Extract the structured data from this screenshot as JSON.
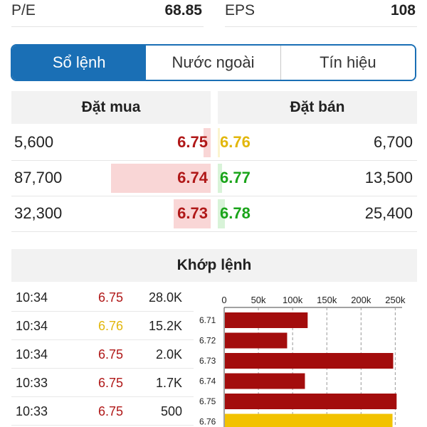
{
  "stats": {
    "pe_label": "P/E",
    "pe_value": "68.85",
    "eps_label": "EPS",
    "eps_value": "108"
  },
  "tabs": [
    {
      "label": "Sổ lệnh",
      "active": true
    },
    {
      "label": "Nước ngoài",
      "active": false
    },
    {
      "label": "Tín hiệu",
      "active": false
    }
  ],
  "orderbook": {
    "buy_header": "Đặt mua",
    "sell_header": "Đặt bán",
    "rows": [
      {
        "bid_volume": "5,600",
        "bid_price": "6.75",
        "bid_color": "#b01818",
        "bid_bar_fraction": 0.07,
        "ask_price": "6.76",
        "ask_color": "#e2b70c",
        "ask_bar_fraction": 0.05,
        "ask_bar_color": "#fbf4cf",
        "ask_volume": "6,700"
      },
      {
        "bid_volume": "87,700",
        "bid_price": "6.74",
        "bid_color": "#b01818",
        "bid_bar_fraction": 1.0,
        "ask_price": "6.77",
        "ask_color": "#1aa41a",
        "ask_bar_fraction": 0.1,
        "ask_bar_color": "#d8f3d8",
        "ask_volume": "13,500"
      },
      {
        "bid_volume": "32,300",
        "bid_price": "6.73",
        "bid_color": "#b01818",
        "bid_bar_fraction": 0.37,
        "ask_price": "6.78",
        "ask_color": "#1aa41a",
        "ask_bar_fraction": 0.19,
        "ask_bar_color": "#d8f3d8",
        "ask_volume": "25,400"
      }
    ]
  },
  "matched": {
    "title": "Khớp lệnh",
    "rows": [
      {
        "time": "10:34",
        "price": "6.75",
        "price_color": "#b01818",
        "volume": "28.0K"
      },
      {
        "time": "10:34",
        "price": "6.76",
        "price_color": "#e2b70c",
        "volume": "15.2K"
      },
      {
        "time": "10:34",
        "price": "6.75",
        "price_color": "#b01818",
        "volume": "2.0K"
      },
      {
        "time": "10:33",
        "price": "6.75",
        "price_color": "#b01818",
        "volume": "1.7K"
      },
      {
        "time": "10:33",
        "price": "6.75",
        "price_color": "#b01818",
        "volume": "500"
      }
    ]
  },
  "chart_data": {
    "type": "bar",
    "orientation": "horizontal",
    "categories": [
      "6.71",
      "6.72",
      "6.73",
      "6.74",
      "6.75",
      "6.76"
    ],
    "values": [
      122000,
      92000,
      247000,
      118000,
      252000,
      246000
    ],
    "bar_colors": [
      "#a30d0d",
      "#a30d0d",
      "#a30d0d",
      "#a30d0d",
      "#a30d0d",
      "#f2c200"
    ],
    "xticks": [
      "0",
      "50k",
      "100k",
      "150k",
      "200k",
      "250k"
    ],
    "xtick_values": [
      0,
      50000,
      100000,
      150000,
      200000,
      250000
    ],
    "xlim": [
      0,
      260000
    ],
    "grid": true,
    "xaxis_position": "top"
  }
}
